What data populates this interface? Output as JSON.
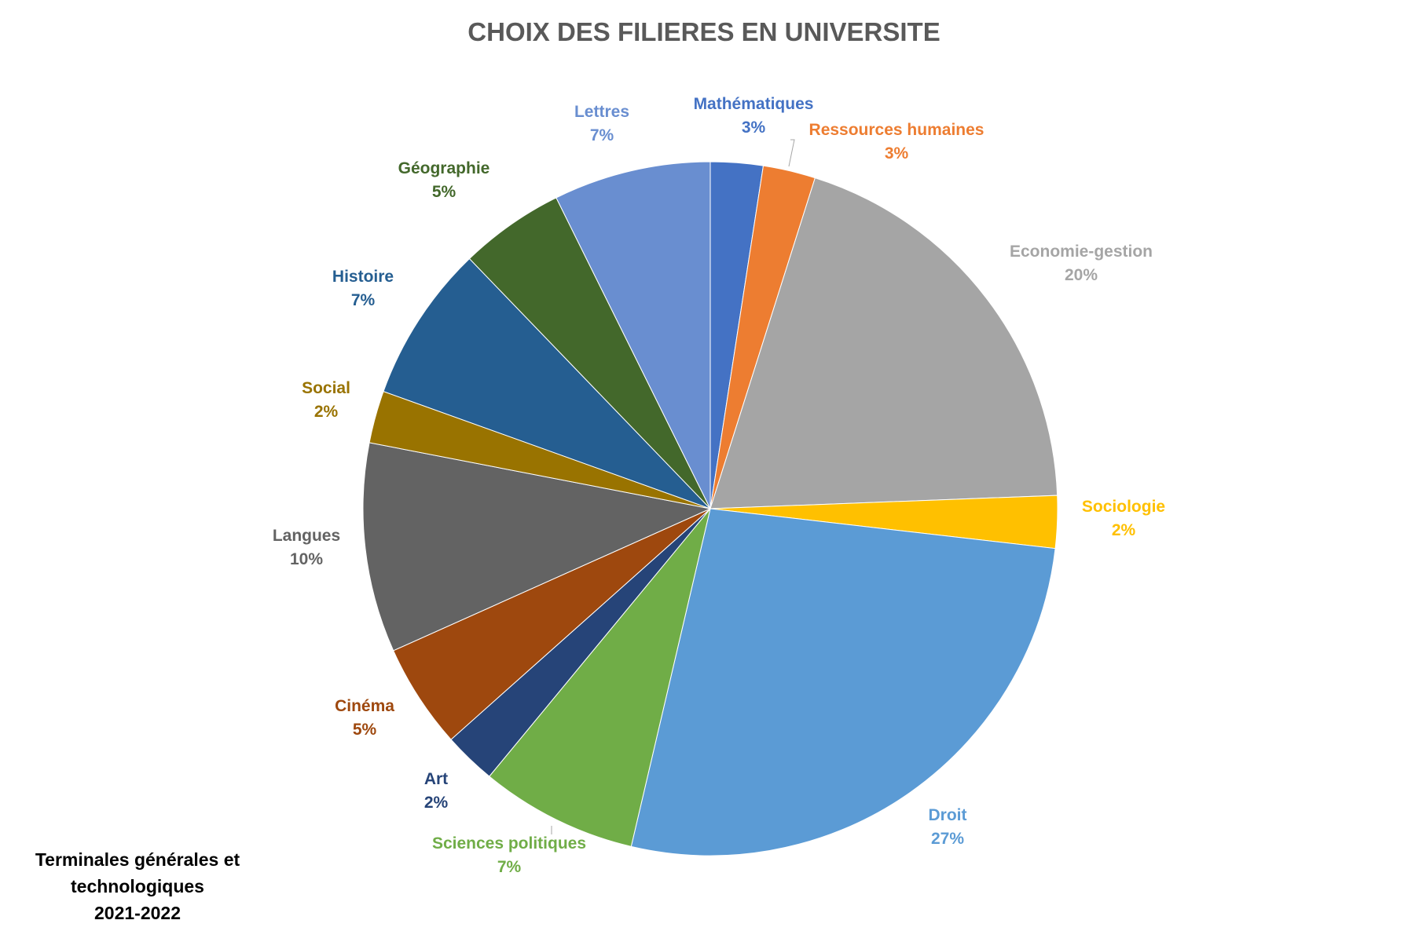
{
  "chart_data": {
    "type": "pie",
    "title": "CHOIX DES FILIERES EN UNIVERSITE",
    "slices": [
      {
        "label": "Mathématiques",
        "value_label": "3%",
        "value": 2.5,
        "color": "#4472c4"
      },
      {
        "label": "Ressources humaines",
        "value_label": "3%",
        "value": 2.5,
        "color": "#ed7d31"
      },
      {
        "label": "Economie-gestion",
        "value_label": "20%",
        "value": 20,
        "color": "#a5a5a5"
      },
      {
        "label": "Sociologie",
        "value_label": "2%",
        "value": 2.5,
        "color": "#ffc000"
      },
      {
        "label": "Droit",
        "value_label": "27%",
        "value": 27.5,
        "color": "#5b9bd5"
      },
      {
        "label": "Sciences politiques",
        "value_label": "7%",
        "value": 7.5,
        "color": "#70ad47"
      },
      {
        "label": "Art",
        "value_label": "2%",
        "value": 2.5,
        "color": "#264478"
      },
      {
        "label": "Cinéma",
        "value_label": "5%",
        "value": 5,
        "color": "#9e480e"
      },
      {
        "label": "Langues",
        "value_label": "10%",
        "value": 10,
        "color": "#636363"
      },
      {
        "label": "Social",
        "value_label": "2%",
        "value": 2.5,
        "color": "#997300"
      },
      {
        "label": "Histoire",
        "value_label": "7%",
        "value": 7.5,
        "color": "#255e91"
      },
      {
        "label": "Géographie",
        "value_label": "5%",
        "value": 5,
        "color": "#43682b"
      },
      {
        "label": "Lettres",
        "value_label": "7%",
        "value": 7.5,
        "color": "#698ed0"
      }
    ],
    "label_colors": {
      "Mathématiques": "#4472c4",
      "Ressources humaines": "#ed7d31",
      "Economie-gestion": "#a5a5a5",
      "Sociologie": "#ffc000",
      "Droit": "#5b9bd5",
      "Sciences politiques": "#70ad47",
      "Art": "#264478",
      "Cinéma": "#9e480e",
      "Langues": "#636363",
      "Social": "#997300",
      "Histoire": "#255e91",
      "Géographie": "#43682b",
      "Lettres": "#698ed0"
    }
  },
  "footnote": {
    "line1": "Terminales générales et",
    "line2": "technologiques",
    "line3": "2021-2022"
  }
}
